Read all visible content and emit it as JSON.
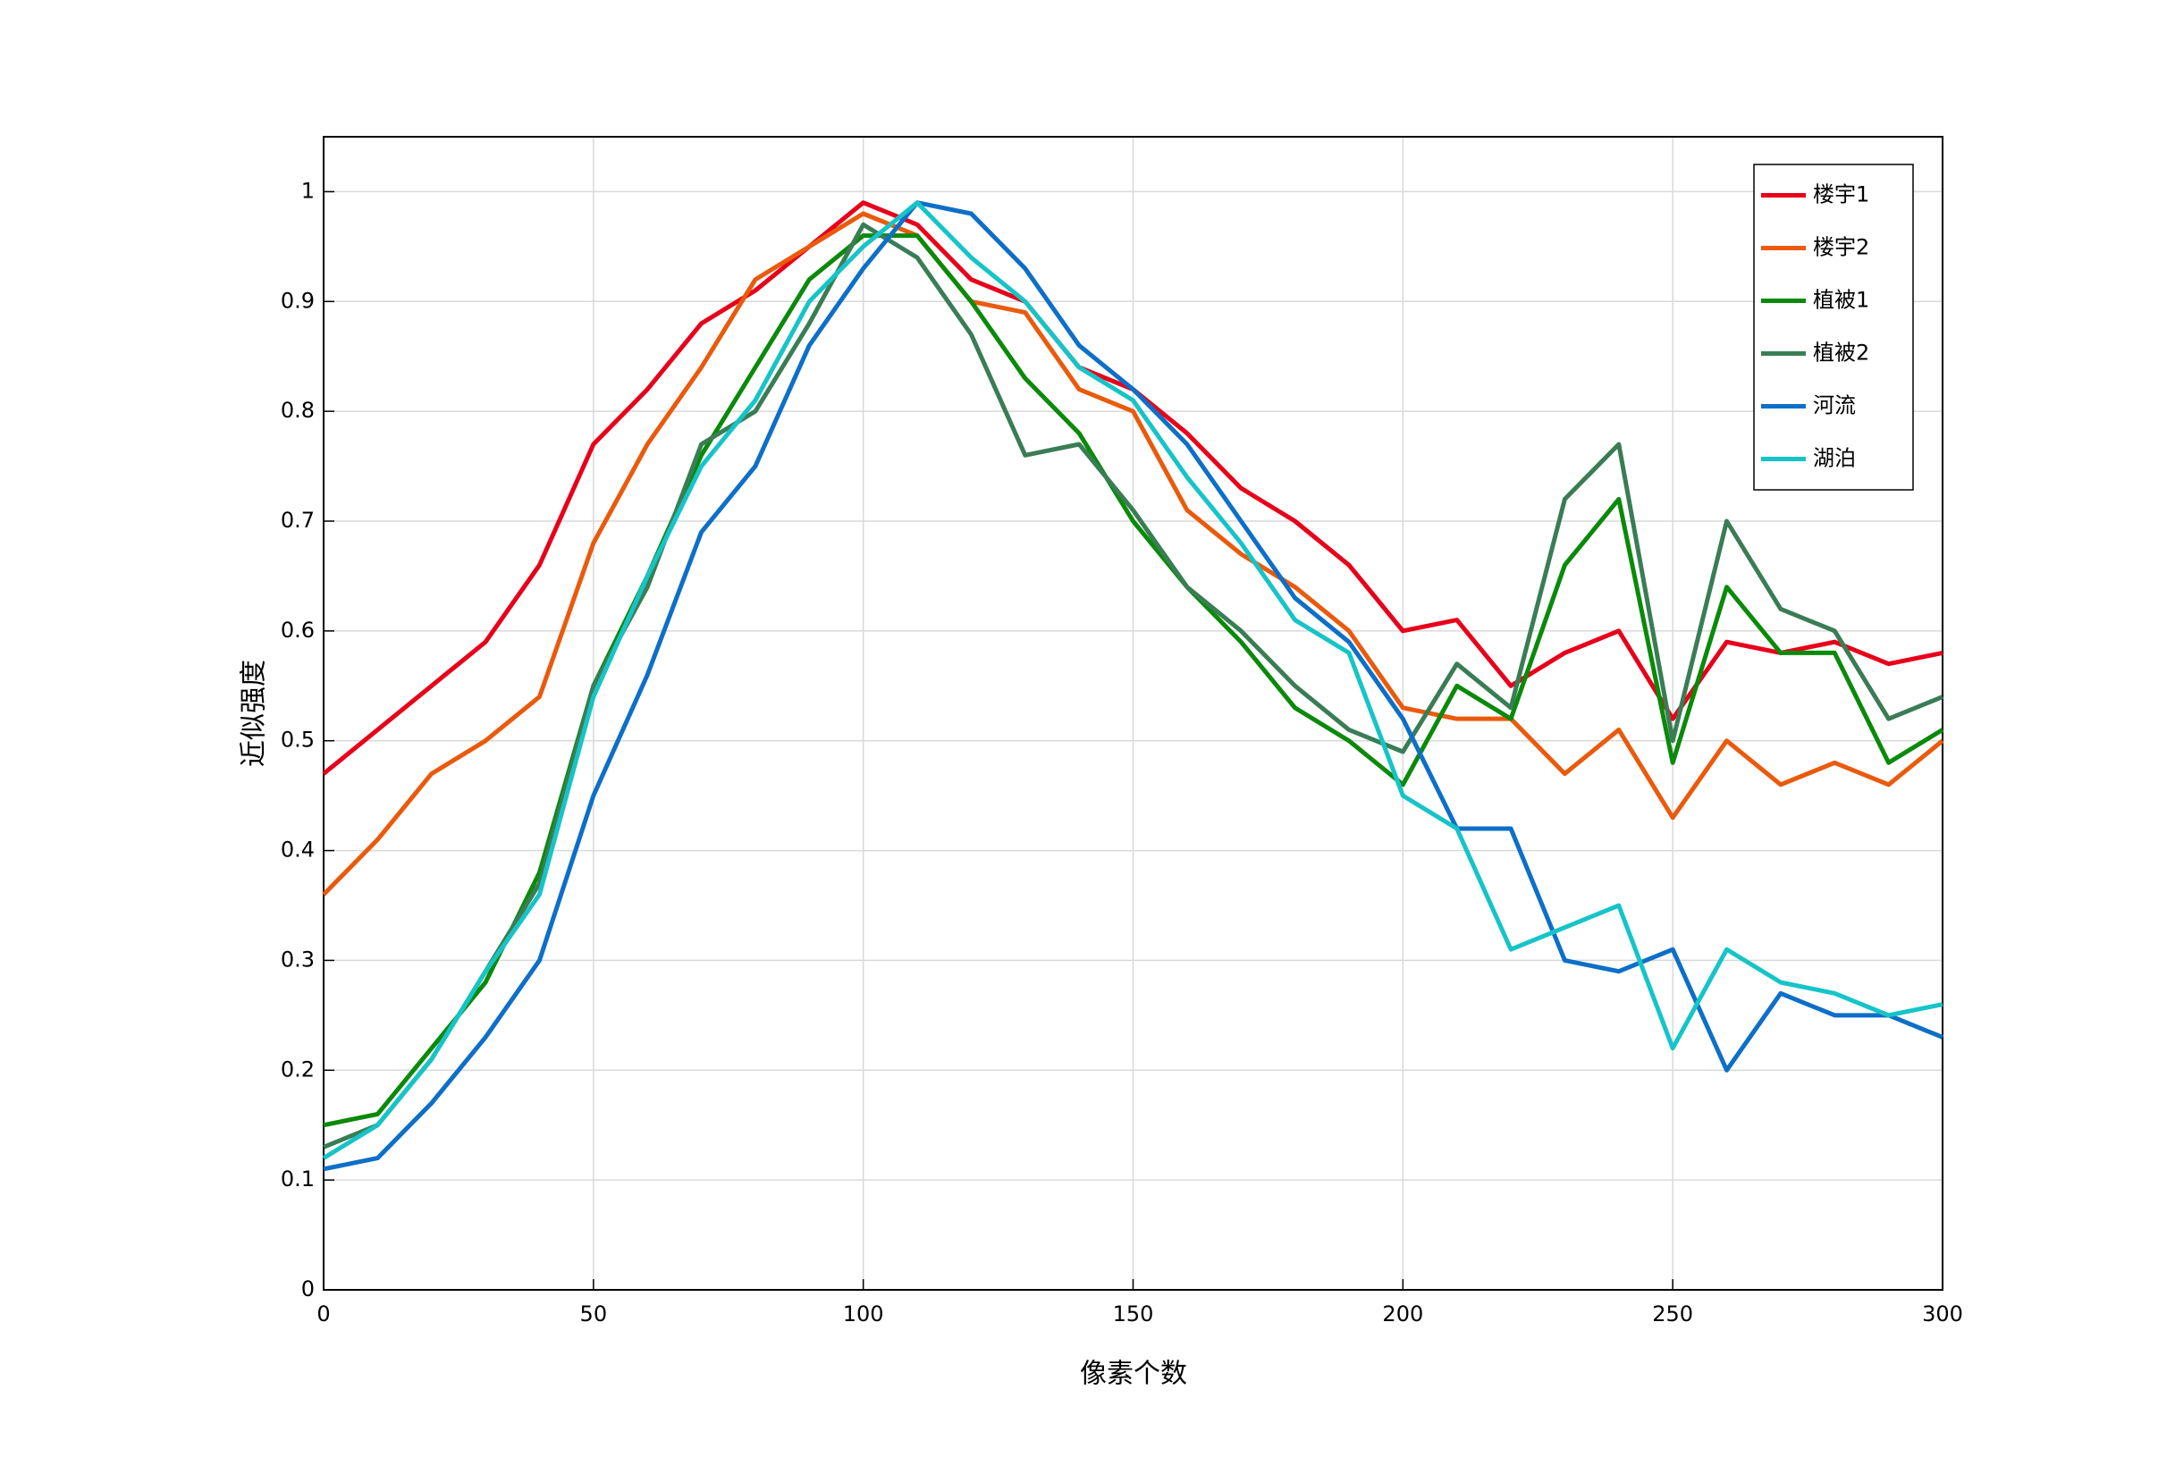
{
  "chart_data": {
    "type": "line",
    "xlabel": "像素个数",
    "ylabel": "近似强度",
    "x": [
      0,
      10,
      20,
      30,
      40,
      50,
      60,
      70,
      80,
      90,
      100,
      110,
      120,
      130,
      140,
      150,
      160,
      170,
      180,
      190,
      200,
      210,
      220,
      230,
      240,
      250,
      260,
      270,
      280,
      290,
      300
    ],
    "series": [
      {
        "name": "楼宇1",
        "color": "#e8001a",
        "values": [
          0.47,
          0.51,
          0.55,
          0.59,
          0.66,
          0.77,
          0.82,
          0.88,
          0.91,
          0.95,
          0.99,
          0.97,
          0.92,
          0.9,
          0.84,
          0.82,
          0.78,
          0.73,
          0.7,
          0.66,
          0.6,
          0.61,
          0.55,
          0.58,
          0.6,
          0.52,
          0.59,
          0.58,
          0.59,
          0.57,
          0.58
        ]
      },
      {
        "name": "楼宇2",
        "color": "#ea5a0c",
        "values": [
          0.36,
          0.41,
          0.47,
          0.5,
          0.54,
          0.68,
          0.77,
          0.84,
          0.92,
          0.95,
          0.98,
          0.96,
          0.9,
          0.89,
          0.82,
          0.8,
          0.71,
          0.67,
          0.64,
          0.6,
          0.53,
          0.52,
          0.52,
          0.47,
          0.51,
          0.43,
          0.5,
          0.46,
          0.48,
          0.46,
          0.5
        ]
      },
      {
        "name": "植被1",
        "color": "#0a8a0a",
        "values": [
          0.15,
          0.16,
          0.22,
          0.28,
          0.38,
          0.55,
          0.65,
          0.76,
          0.84,
          0.92,
          0.96,
          0.96,
          0.9,
          0.83,
          0.78,
          0.7,
          0.64,
          0.59,
          0.53,
          0.5,
          0.46,
          0.55,
          0.52,
          0.66,
          0.72,
          0.48,
          0.64,
          0.58,
          0.58,
          0.48,
          0.51
        ]
      },
      {
        "name": "植被2",
        "color": "#3a7d55",
        "values": [
          0.13,
          0.15,
          0.21,
          0.29,
          0.37,
          0.55,
          0.64,
          0.77,
          0.8,
          0.88,
          0.97,
          0.94,
          0.87,
          0.76,
          0.77,
          0.71,
          0.64,
          0.6,
          0.55,
          0.51,
          0.49,
          0.57,
          0.53,
          0.72,
          0.77,
          0.5,
          0.7,
          0.62,
          0.6,
          0.52,
          0.54
        ]
      },
      {
        "name": "河流",
        "color": "#0d6fc8",
        "values": [
          0.11,
          0.12,
          0.17,
          0.23,
          0.3,
          0.45,
          0.56,
          0.69,
          0.75,
          0.86,
          0.93,
          0.99,
          0.98,
          0.93,
          0.86,
          0.82,
          0.77,
          0.7,
          0.63,
          0.59,
          0.52,
          0.42,
          0.42,
          0.3,
          0.29,
          0.31,
          0.2,
          0.27,
          0.25,
          0.25,
          0.23
        ]
      },
      {
        "name": "湖泊",
        "color": "#16c4c8",
        "values": [
          0.12,
          0.15,
          0.21,
          0.29,
          0.36,
          0.54,
          0.65,
          0.75,
          0.81,
          0.9,
          0.95,
          0.99,
          0.94,
          0.9,
          0.84,
          0.81,
          0.74,
          0.68,
          0.61,
          0.58,
          0.45,
          0.42,
          0.31,
          0.33,
          0.35,
          0.22,
          0.31,
          0.28,
          0.27,
          0.25,
          0.26
        ]
      }
    ],
    "xlim": [
      0,
      300
    ],
    "xticks": [
      0,
      50,
      100,
      150,
      200,
      250,
      300
    ],
    "ylim": [
      0,
      1.05
    ],
    "yticks": [
      0,
      0.1,
      0.2,
      0.3,
      0.4,
      0.5,
      0.6,
      0.7,
      0.8,
      0.9,
      1
    ],
    "grid": true,
    "legend": "northeast"
  }
}
